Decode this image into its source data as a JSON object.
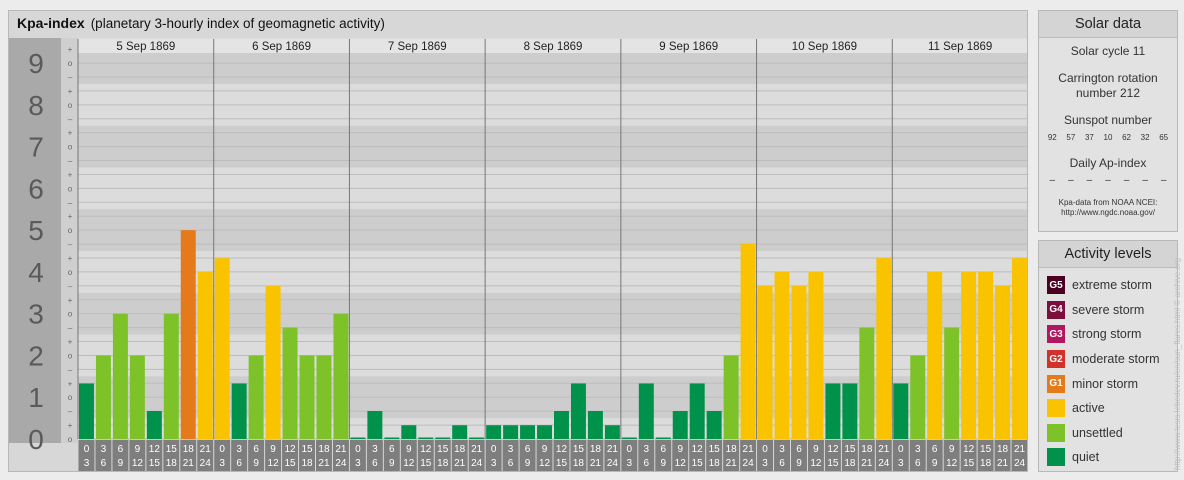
{
  "title": {
    "main": "Kpa-index",
    "sub": "(planetary 3-hourly index of geomagnetic activity)"
  },
  "levels": {
    "quiet": "#00924a",
    "unsettled": "#7ec22a",
    "active": "#f9c300",
    "g1": "#e47a1a"
  },
  "chart_data": {
    "type": "bar",
    "title": "Kpa-index",
    "subtitle": "(planetary 3-hourly index of geomagnetic activity)",
    "ylim": [
      0,
      9
    ],
    "y_ticks": [
      "0",
      "1",
      "2",
      "3",
      "4",
      "5",
      "6",
      "7",
      "8",
      "9"
    ],
    "y_subticks": [
      "o",
      "+",
      "–"
    ],
    "hour_start": [
      "0",
      "3",
      "6",
      "9",
      "12",
      "15",
      "18",
      "21"
    ],
    "hour_end": [
      "3",
      "6",
      "9",
      "12",
      "15",
      "18",
      "21",
      "24"
    ],
    "days": [
      {
        "label": "5 Sep 1869",
        "values": [
          1.33,
          2.0,
          3.0,
          2.0,
          0.67,
          3.0,
          5.0,
          4.0
        ]
      },
      {
        "label": "6 Sep 1869",
        "values": [
          4.33,
          1.33,
          2.0,
          3.67,
          2.67,
          2.0,
          2.0,
          3.0
        ]
      },
      {
        "label": "7 Sep 1869",
        "values": [
          0.0,
          0.67,
          0.0,
          0.33,
          0.0,
          0.0,
          0.33,
          0.0
        ]
      },
      {
        "label": "8 Sep 1869",
        "values": [
          0.33,
          0.33,
          0.33,
          0.33,
          0.67,
          1.33,
          0.67,
          0.33
        ]
      },
      {
        "label": "9 Sep 1869",
        "values": [
          0.0,
          1.33,
          0.0,
          0.67,
          1.33,
          0.67,
          2.0,
          4.67
        ]
      },
      {
        "label": "10 Sep 1869",
        "values": [
          3.67,
          4.0,
          3.67,
          4.0,
          1.33,
          1.33,
          2.67,
          4.33
        ]
      },
      {
        "label": "11 Sep 1869",
        "values": [
          1.33,
          2.0,
          4.0,
          2.67,
          4.0,
          4.0,
          3.67,
          4.33
        ]
      }
    ]
  },
  "solar": {
    "heading": "Solar data",
    "cycle": "Solar cycle 11",
    "carrington_1": "Carrington rotation",
    "carrington_2": "number 212",
    "sunspot_heading": "Sunspot number",
    "sunspots": [
      "92",
      "57",
      "37",
      "10",
      "62",
      "32",
      "65"
    ],
    "ap_heading": "Daily Ap-index",
    "ap": [
      "–",
      "–",
      "–",
      "–",
      "–",
      "–",
      "–"
    ],
    "source_1": "Kpa-data from NOAA NCEI:",
    "source_2": "http://www.ngdc.noaa.gov/"
  },
  "activity": {
    "heading": "Activity levels",
    "items": [
      {
        "badge": "G5",
        "label": "extreme storm",
        "color": "#4a0021"
      },
      {
        "badge": "G4",
        "label": "severe storm",
        "color": "#7d0f3e"
      },
      {
        "badge": "G3",
        "label": "strong storm",
        "color": "#b0175e"
      },
      {
        "badge": "G2",
        "label": "moderate storm",
        "color": "#d3312a"
      },
      {
        "badge": "G1",
        "label": "minor storm",
        "color": "#e47a1a"
      },
      {
        "badge": "",
        "label": "active",
        "color": "#f9c300"
      },
      {
        "badge": "",
        "label": "unsettled",
        "color": "#7ec22a"
      },
      {
        "badge": "",
        "label": "quiet",
        "color": "#00924a"
      }
    ]
  },
  "credit": "http://www.tesis.lebedev.ru/en/sun_flares.html  © archive.org"
}
